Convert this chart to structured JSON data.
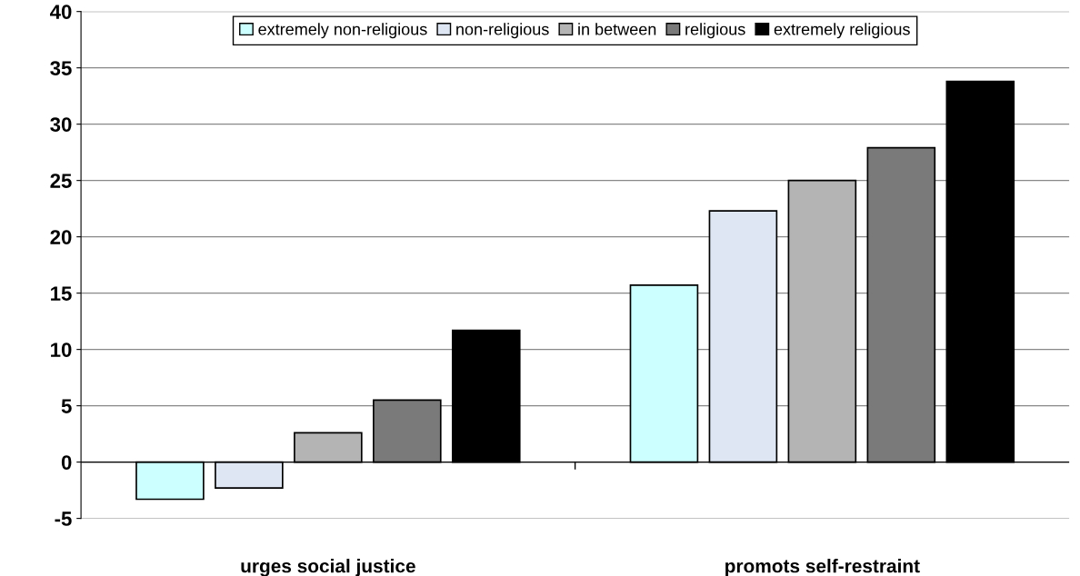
{
  "chart_data": {
    "type": "bar",
    "categories": [
      "urges social justice",
      "promots self-restraint"
    ],
    "series": [
      {
        "name": "extremely non-religious",
        "color": "#ccffff",
        "values": [
          -3.3,
          15.7
        ]
      },
      {
        "name": "non-religious",
        "color": "#dde6f2",
        "values": [
          -2.3,
          22.3
        ]
      },
      {
        "name": "in between",
        "color": "#b4b4b4",
        "values": [
          2.6,
          25.0
        ]
      },
      {
        "name": "religious",
        "color": "#7a7a7a",
        "values": [
          5.5,
          27.9
        ]
      },
      {
        "name": "extremely religious",
        "color": "#000000",
        "values": [
          11.7,
          33.8
        ]
      }
    ],
    "ylim": [
      -5,
      40
    ],
    "yticks": [
      -5,
      0,
      5,
      10,
      15,
      20,
      25,
      30,
      35,
      40
    ],
    "grid": "y",
    "legend": "top"
  }
}
